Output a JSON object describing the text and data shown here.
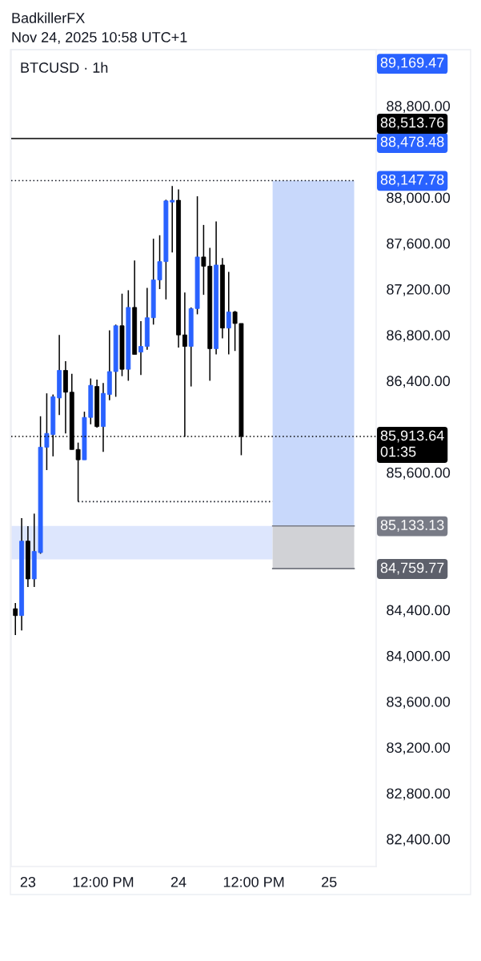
{
  "chart_data": {
    "type": "candlestick",
    "title": "BTCUSD · 1h",
    "annotations": [
      "BadkillerFX",
      "Nov 24, 2025 10:58 UTC+1",
      "89,169.47",
      "88,478.48"
    ],
    "x": [
      "2025-11-22T22:00",
      "2025-11-22T23:00",
      "2025-11-23T00:00",
      "2025-11-23T01:00",
      "2025-11-23T02:00",
      "2025-11-23T03:00",
      "2025-11-23T04:00",
      "2025-11-23T05:00",
      "2025-11-23T06:00",
      "2025-11-23T07:00",
      "2025-11-23T08:00",
      "2025-11-23T09:00",
      "2025-11-23T10:00",
      "2025-11-23T11:00",
      "2025-11-23T12:00",
      "2025-11-23T13:00",
      "2025-11-23T14:00",
      "2025-11-23T15:00",
      "2025-11-23T16:00",
      "2025-11-23T17:00",
      "2025-11-23T18:00",
      "2025-11-23T19:00",
      "2025-11-23T20:00",
      "2025-11-23T21:00",
      "2025-11-23T22:00",
      "2025-11-23T23:00",
      "2025-11-24T00:00",
      "2025-11-24T01:00",
      "2025-11-24T02:00",
      "2025-11-24T03:00",
      "2025-11-24T04:00",
      "2025-11-24T05:00",
      "2025-11-24T06:00",
      "2025-11-24T07:00",
      "2025-11-24T08:00",
      "2025-11-24T09:00",
      "2025-11-24T10:00"
    ],
    "ohlc": [
      [
        84410,
        84460,
        84180,
        84350
      ],
      [
        84350,
        85200,
        84220,
        85000
      ],
      [
        85000,
        85130,
        84600,
        84670
      ],
      [
        84670,
        85240,
        84600,
        84910
      ],
      [
        84900,
        86090,
        84890,
        85820
      ],
      [
        85820,
        86290,
        85620,
        85940
      ],
      [
        85930,
        86280,
        85740,
        86260
      ],
      [
        86250,
        86800,
        86100,
        86490
      ],
      [
        86490,
        86570,
        85940,
        86300
      ],
      [
        86300,
        86460,
        85800,
        85800
      ],
      [
        85800,
        85860,
        85345,
        85710
      ],
      [
        85710,
        86130,
        85710,
        86080
      ],
      [
        86080,
        86420,
        86020,
        86360
      ],
      [
        86350,
        86410,
        85990,
        86000
      ],
      [
        86000,
        86380,
        85780,
        86290
      ],
      [
        86280,
        86840,
        86230,
        86480
      ],
      [
        86480,
        86890,
        86260,
        86880
      ],
      [
        86880,
        87160,
        86440,
        86500
      ],
      [
        86500,
        87190,
        86400,
        87040
      ],
      [
        87040,
        87450,
        86630,
        86630
      ],
      [
        86650,
        86920,
        86450,
        86700
      ],
      [
        86700,
        87210,
        86670,
        86950
      ],
      [
        86950,
        87640,
        86890,
        87280
      ],
      [
        87280,
        87670,
        87200,
        87440
      ],
      [
        87440,
        87980,
        87110,
        87970
      ],
      [
        87960,
        88100,
        87520,
        87975
      ],
      [
        87975,
        88070,
        86690,
        86800
      ],
      [
        86800,
        87170,
        85910,
        86700
      ],
      [
        86700,
        87040,
        86350,
        87030
      ],
      [
        87030,
        88010,
        86980,
        87480
      ],
      [
        87480,
        87760,
        87150,
        87400
      ],
      [
        87400,
        87560,
        86400,
        86680
      ],
      [
        86680,
        87790,
        86630,
        87410
      ],
      [
        87410,
        87470,
        86770,
        86860
      ],
      [
        86860,
        87350,
        86630,
        87000
      ],
      [
        87000,
        87010,
        86660,
        86900
      ],
      [
        86900,
        86900,
        85750,
        85913.64
      ]
    ],
    "colors": [
      "#000000",
      "#2962ff",
      "#000000",
      "#2962ff",
      "#2962ff",
      "#2962ff",
      "#2962ff",
      "#2962ff",
      "#000000",
      "#000000",
      "#000000",
      "#2962ff",
      "#2962ff",
      "#000000",
      "#2962ff",
      "#2962ff",
      "#2962ff",
      "#000000",
      "#2962ff",
      "#000000",
      "#2962ff",
      "#2962ff",
      "#2962ff",
      "#2962ff",
      "#2962ff",
      "#2962ff",
      "#000000",
      "#000000",
      "#2962ff",
      "#2962ff",
      "#000000",
      "#000000",
      "#2962ff",
      "#000000",
      "#2962ff",
      "#000000",
      "#000000"
    ],
    "series": [
      {
        "type": "line",
        "x": [
          "2025-11-22T21:20",
          "2025-11-24T15:00"
        ],
        "values": [
          null,
          null
        ],
        "lower": [
          84840,
          84840
        ],
        "upper": [
          85133.13,
          85133.13
        ],
        "color": "#dde6fd"
      },
      {
        "type": "line",
        "x": [
          "2025-11-24T15:00",
          "2025-11-25T04:00"
        ],
        "values": [
          null,
          null
        ],
        "lower": [
          85133.13,
          85133.13
        ],
        "upper": [
          88147.78,
          88147.78
        ],
        "color": "#c8d8fb"
      },
      {
        "type": "line",
        "x": [
          "2025-11-24T15:00",
          "2025-11-25T04:00"
        ],
        "values": [
          null,
          null
        ],
        "lower": [
          84759.77,
          84759.77
        ],
        "upper": [
          85133.13,
          85133.13
        ],
        "color": "#d1d2d6"
      },
      {
        "type": "line",
        "x": [
          "2025-11-22T21:20",
          "2025-11-25T04:00"
        ],
        "values": [
          88147.78,
          88147.78
        ],
        "value_labels": [
          null,
          "88,147.78"
        ],
        "color": "#131722",
        "line_style": "dotted"
      },
      {
        "type": "line",
        "x": [
          "2025-11-23T08:00",
          "2025-11-24T15:00"
        ],
        "values": [
          85345,
          85345
        ],
        "color": "#131722",
        "line_style": "dotted"
      },
      {
        "type": "line",
        "x": [
          "2025-11-24T15:00",
          "2025-11-25T04:00"
        ],
        "values": [
          85133.13,
          85133.13
        ],
        "value_labels": [
          null,
          "85,133.13"
        ],
        "color": "#787b86",
        "line_style": "solid"
      },
      {
        "type": "line",
        "x": [
          "2025-11-24T15:00",
          "2025-11-25T04:00"
        ],
        "values": [
          84759.77,
          84759.77
        ],
        "value_labels": [
          null,
          "84,759.77"
        ],
        "color": "#5d606b",
        "line_style": "solid"
      }
    ],
    "xlim": [
      "2025-11-22T21:20",
      "2025-11-25T07:30"
    ],
    "xticks": [
      {
        "value": "2025-11-23",
        "label": "23"
      },
      {
        "value": "2025-11-23T12:00",
        "label": "12:00 PM"
      },
      {
        "value": "2025-11-24",
        "label": "24"
      },
      {
        "value": "2025-11-24T12:00",
        "label": "12:00 PM"
      },
      {
        "value": "2025-11-25",
        "label": "25"
      }
    ],
    "ylim": [
      82160,
      89290
    ],
    "yticks": [
      {
        "value": 82400,
        "label": "82,400.00"
      },
      {
        "value": 82800,
        "label": "82,800.00"
      },
      {
        "value": 83200,
        "label": "83,200.00"
      },
      {
        "value": 83600,
        "label": "83,600.00"
      },
      {
        "value": 84000,
        "label": "84,000.00"
      },
      {
        "value": 84400,
        "label": "84,400.00"
      },
      {
        "value": 85600,
        "label": "85,600.00"
      },
      {
        "value": 86400,
        "label": "86,400.00"
      },
      {
        "value": 86800,
        "label": "86,800.00"
      },
      {
        "value": 87200,
        "label": "87,200.00"
      },
      {
        "value": 87600,
        "label": "87,600.00"
      },
      {
        "value": 88000,
        "label": "88,000.00"
      },
      {
        "value": 88800,
        "label": "88,800.00"
      }
    ],
    "ref_lines": [
      {
        "axis": "y",
        "value": 88513.76,
        "label": "88,513.76",
        "color": "#000000",
        "line_style": "solid"
      },
      {
        "axis": "y",
        "value": 85913.64,
        "label": "85,913.64\n01:35",
        "color": "#000000",
        "line_style": "dotted"
      }
    ]
  }
}
